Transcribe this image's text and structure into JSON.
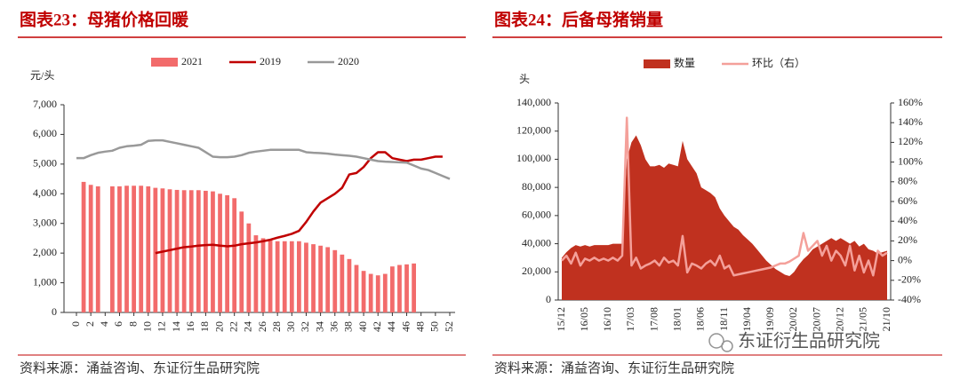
{
  "chart_data": [
    {
      "type": "combo",
      "title": "图表23：母猪价格回暖",
      "y_label": "元/头",
      "source": "资料来源：涌益咨询、东证衍生品研究院",
      "x": [
        0,
        1,
        2,
        3,
        4,
        5,
        6,
        7,
        8,
        9,
        10,
        11,
        12,
        13,
        14,
        15,
        16,
        17,
        18,
        19,
        20,
        21,
        22,
        23,
        24,
        25,
        26,
        27,
        28,
        29,
        30,
        31,
        32,
        33,
        34,
        35,
        36,
        37,
        38,
        39,
        40,
        41,
        42,
        43,
        44,
        45,
        46,
        47,
        48,
        49,
        50,
        51,
        52
      ],
      "xlim": [
        0,
        52
      ],
      "xticks": [
        0,
        2,
        4,
        6,
        8,
        10,
        12,
        14,
        16,
        18,
        20,
        22,
        24,
        26,
        28,
        30,
        32,
        34,
        36,
        38,
        40,
        42,
        44,
        46,
        48,
        50,
        52
      ],
      "ylim": [
        0,
        7000
      ],
      "yticks": [
        0,
        {
          "value": 1000,
          "label": "1,000"
        },
        {
          "value": 2000,
          "label": "2,000"
        },
        {
          "value": 3000,
          "label": "3,000"
        },
        {
          "value": 4000,
          "label": "4,000"
        },
        {
          "value": 5000,
          "label": "5,000"
        },
        {
          "value": 6000,
          "label": "6,000"
        },
        {
          "value": 7000,
          "label": "7,000"
        }
      ],
      "series": [
        {
          "name": "2021",
          "type": "bar",
          "color": "#f26b6b",
          "values": [
            null,
            4400,
            4300,
            4250,
            null,
            4250,
            4250,
            4270,
            4270,
            4270,
            4250,
            4200,
            4180,
            4150,
            4130,
            4120,
            4120,
            4120,
            4100,
            4080,
            4000,
            3950,
            3850,
            3400,
            3000,
            2600,
            2500,
            2450,
            2400,
            2400,
            2400,
            2400,
            2350,
            2300,
            2250,
            2200,
            2100,
            1950,
            1800,
            1600,
            1400,
            1300,
            1250,
            1300,
            1550,
            1600,
            1620,
            1650,
            null,
            null,
            null,
            null,
            null
          ]
        },
        {
          "name": "2019",
          "type": "line",
          "color": "#c00000",
          "values": [
            null,
            null,
            null,
            null,
            null,
            null,
            null,
            null,
            null,
            null,
            null,
            2000,
            2050,
            2100,
            2150,
            2200,
            2220,
            2250,
            2270,
            2280,
            2250,
            2230,
            2250,
            2300,
            2330,
            2360,
            2400,
            2450,
            2520,
            2580,
            2650,
            2750,
            3050,
            3400,
            3700,
            3850,
            4000,
            4200,
            4650,
            4700,
            4900,
            5200,
            5400,
            5400,
            5200,
            5150,
            5100,
            5150,
            5150,
            5200,
            5250,
            5250,
            null
          ]
        },
        {
          "name": "2020",
          "type": "line",
          "color": "#999999",
          "values": [
            5200,
            5200,
            5300,
            5380,
            5420,
            5450,
            5550,
            5600,
            5620,
            5650,
            5780,
            5800,
            5800,
            5750,
            5700,
            5650,
            5600,
            5550,
            5400,
            5250,
            5230,
            5230,
            5250,
            5300,
            5380,
            5420,
            5450,
            5480,
            5480,
            5480,
            5480,
            5480,
            5400,
            5380,
            5370,
            5350,
            5320,
            5300,
            5280,
            5250,
            5200,
            5150,
            5100,
            5080,
            5070,
            5060,
            5050,
            4950,
            4850,
            4800,
            4700,
            4600,
            4500
          ]
        }
      ]
    },
    {
      "type": "combo",
      "title": "图表24：后备母猪销量",
      "y_label": "头",
      "source": "资料来源：涌益咨询、东证衍生品研究院",
      "categories": [
        "15/12",
        null,
        null,
        null,
        null,
        "16/05",
        null,
        null,
        null,
        null,
        "16/10",
        null,
        null,
        null,
        null,
        "17/03",
        null,
        null,
        null,
        null,
        "17/08",
        null,
        null,
        null,
        null,
        "18/01",
        null,
        null,
        null,
        null,
        "18/06",
        null,
        null,
        null,
        null,
        "18/11",
        null,
        null,
        null,
        null,
        "19/04",
        null,
        null,
        null,
        null,
        "19/09",
        null,
        null,
        null,
        null,
        "20/02",
        null,
        null,
        null,
        null,
        "20/07",
        null,
        null,
        null,
        null,
        "20/12",
        null,
        null,
        null,
        null,
        "21/05",
        null,
        null,
        null,
        null,
        "21/10"
      ],
      "ylim": [
        0,
        140000
      ],
      "yticks": [
        0,
        {
          "value": 20000,
          "label": "20,000"
        },
        {
          "value": 40000,
          "label": "40,000"
        },
        {
          "value": 60000,
          "label": "60,000"
        },
        {
          "value": 80000,
          "label": "80,000"
        },
        {
          "value": 100000,
          "label": "100,000"
        },
        {
          "value": 120000,
          "label": "120,000"
        },
        {
          "value": 140000,
          "label": "140,000"
        }
      ],
      "y2lim": [
        -40,
        160
      ],
      "y2ticks": [
        {
          "value": -40,
          "label": "-40%"
        },
        {
          "value": -20,
          "label": "-20%"
        },
        {
          "value": 0,
          "label": "0%"
        },
        {
          "value": 20,
          "label": "20%"
        },
        {
          "value": 40,
          "label": "40%"
        },
        {
          "value": 60,
          "label": "60%"
        },
        {
          "value": 80,
          "label": "80%"
        },
        {
          "value": 100,
          "label": "100%"
        },
        {
          "value": 120,
          "label": "120%"
        },
        {
          "value": 140,
          "label": "140%"
        },
        {
          "value": 160,
          "label": "160%"
        }
      ],
      "series": [
        {
          "name": "数量",
          "type": "area",
          "color": "#c0311f",
          "values": [
            30000,
            34000,
            37000,
            39000,
            38000,
            39000,
            38000,
            39000,
            39000,
            39000,
            39000,
            40000,
            40000,
            40000,
            100000,
            112000,
            117000,
            110000,
            100000,
            95000,
            95000,
            96000,
            94000,
            97000,
            96000,
            95000,
            113000,
            100000,
            95000,
            90000,
            80000,
            78000,
            76000,
            73000,
            65000,
            60000,
            56000,
            52000,
            50000,
            46000,
            43000,
            40000,
            36000,
            32000,
            28000,
            25000,
            22000,
            20000,
            18000,
            17000,
            20000,
            25000,
            29000,
            32000,
            36000,
            38000,
            40000,
            42000,
            44000,
            42000,
            44000,
            42000,
            40000,
            42000,
            38000,
            40000,
            36000,
            35000,
            33000,
            34000,
            35000
          ]
        },
        {
          "name": "环比（右）",
          "type": "line",
          "axis": "y2",
          "color": "#f4a09a",
          "values": [
            0,
            5,
            -3,
            8,
            -5,
            2,
            0,
            3,
            0,
            2,
            0,
            3,
            0,
            5,
            145,
            -5,
            3,
            -8,
            -5,
            -3,
            0,
            -5,
            3,
            -2,
            0,
            -5,
            25,
            -12,
            -3,
            -5,
            -8,
            -3,
            0,
            -5,
            5,
            -8,
            -5,
            -15,
            -14,
            -13,
            -12,
            -11,
            -10,
            -9,
            -8,
            -7,
            -5,
            -3,
            -3,
            -1,
            2,
            5,
            28,
            10,
            15,
            20,
            5,
            15,
            0,
            10,
            5,
            -5,
            15,
            -10,
            5,
            -12,
            0,
            -15,
            10,
            5,
            8
          ]
        }
      ]
    }
  ],
  "watermark": "东证衍生品研究院"
}
